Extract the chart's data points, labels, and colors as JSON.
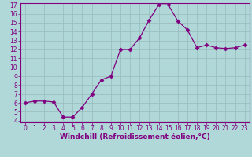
{
  "x": [
    0,
    1,
    2,
    3,
    4,
    5,
    6,
    7,
    8,
    9,
    10,
    11,
    12,
    13,
    14,
    15,
    16,
    17,
    18,
    19,
    20,
    21,
    22,
    23
  ],
  "y": [
    6.0,
    6.2,
    6.2,
    6.1,
    4.4,
    4.4,
    5.5,
    7.0,
    8.6,
    9.0,
    12.0,
    12.0,
    13.3,
    15.3,
    17.0,
    17.0,
    15.2,
    14.2,
    12.2,
    12.5,
    12.2,
    12.1,
    12.2,
    12.5
  ],
  "line_color": "#800080",
  "marker": "D",
  "marker_size": 2.5,
  "bg_color": "#b0d8d8",
  "grid_color": "#99bbbb",
  "xlabel": "Windchill (Refroidissement éolien,°C)",
  "ylabel": "",
  "ylim_min": 4,
  "ylim_max": 17,
  "xlim_min": -0.5,
  "xlim_max": 23.5,
  "yticks": [
    4,
    5,
    6,
    7,
    8,
    9,
    10,
    11,
    12,
    13,
    14,
    15,
    16,
    17
  ],
  "xticks": [
    0,
    1,
    2,
    3,
    4,
    5,
    6,
    7,
    8,
    9,
    10,
    11,
    12,
    13,
    14,
    15,
    16,
    17,
    18,
    19,
    20,
    21,
    22,
    23
  ],
  "tick_color": "#800080",
  "label_color": "#800080",
  "axis_font_size": 5.5,
  "xlabel_font_size": 6.5
}
